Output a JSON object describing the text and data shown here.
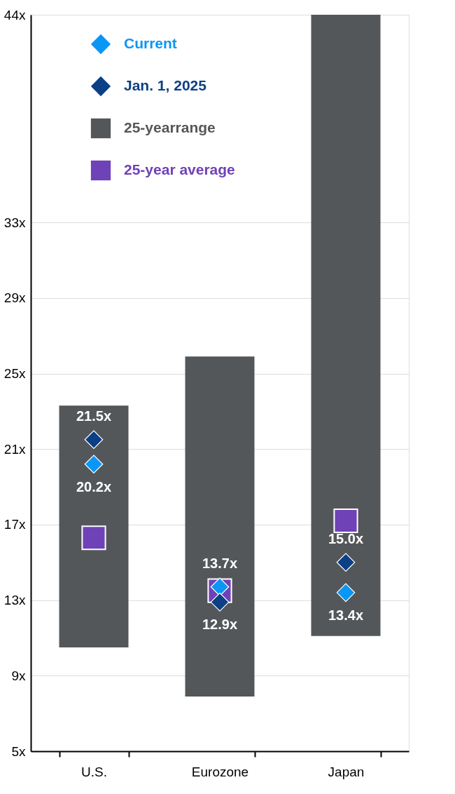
{
  "chart_data": {
    "type": "bar",
    "categories": [
      "U.S.",
      "Eurozone",
      "Japan"
    ],
    "series": [
      {
        "name": "Current",
        "type": "scatter",
        "marker": "diamond",
        "color": "#0a96f5",
        "values": [
          20.2,
          13.7,
          13.4
        ],
        "value_labels": [
          "20.2x",
          "13.7x",
          "13.4x"
        ]
      },
      {
        "name": "Jan. 1, 2025",
        "type": "scatter",
        "marker": "diamond",
        "color": "#0b3f86",
        "values": [
          21.5,
          12.9,
          15.0
        ],
        "value_labels": [
          "21.5x",
          "12.9x",
          "15.0x"
        ]
      },
      {
        "name": "25-yearrange",
        "color": "#54575a",
        "base": [
          10.5,
          7.9,
          11.1
        ],
        "values": [
          12.8,
          18.0,
          32.9
        ]
      },
      {
        "name": "25-year average",
        "type": "scatter",
        "marker": "square",
        "color": "#6f42b8",
        "values": [
          16.3,
          13.5,
          17.2
        ]
      }
    ],
    "ylim": [
      5,
      44
    ],
    "yticks": [
      {
        "value": 5,
        "label": "5x"
      },
      {
        "value": 9,
        "label": "9x"
      },
      {
        "value": 13,
        "label": "13x"
      },
      {
        "value": 17,
        "label": "17x"
      },
      {
        "value": 21,
        "label": "21x"
      },
      {
        "value": 25,
        "label": "25x"
      },
      {
        "value": 29,
        "label": "29x"
      },
      {
        "value": 33,
        "label": "33x"
      },
      {
        "value": 44,
        "label": "44x"
      }
    ],
    "grid": "y",
    "legend": "top left"
  }
}
